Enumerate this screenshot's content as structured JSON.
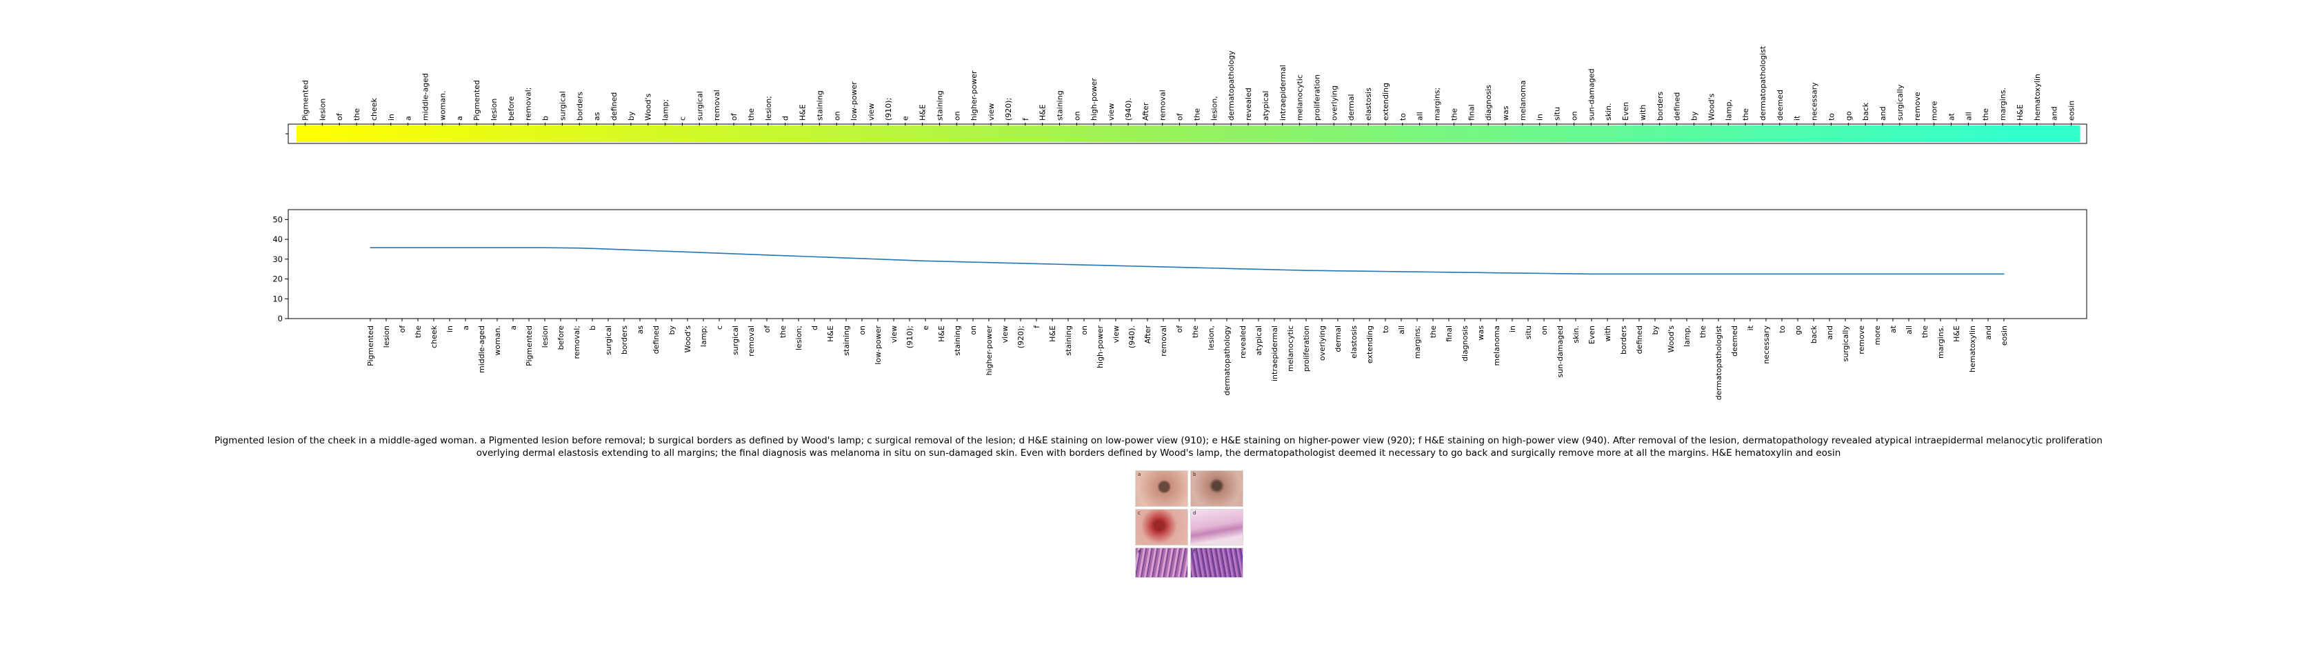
{
  "tokens": [
    "Pigmented",
    "lesion",
    "of",
    "the",
    "cheek",
    "in",
    "a",
    "middle-aged",
    "woman.",
    "a",
    "Pigmented",
    "lesion",
    "before",
    "removal;",
    "b",
    "surgical",
    "borders",
    "as",
    "defined",
    "by",
    "Wood's",
    "lamp;",
    "c",
    "surgical",
    "removal",
    "of",
    "the",
    "lesion;",
    "d",
    "H&E",
    "staining",
    "on",
    "low-power",
    "view",
    "(910);",
    "e",
    "H&E",
    "staining",
    "on",
    "higher-power",
    "view",
    "(920);",
    "f",
    "H&E",
    "staining",
    "on",
    "high-power",
    "view",
    "(940).",
    "After",
    "removal",
    "of",
    "the",
    "lesion,",
    "dermatopathology",
    "revealed",
    "atypical",
    "intraepidermal",
    "melanocytic",
    "proliferation",
    "overlying",
    "dermal",
    "elastosis",
    "extending",
    "to",
    "all",
    "margins;",
    "the",
    "final",
    "diagnosis",
    "was",
    "melanoma",
    "in",
    "situ",
    "on",
    "sun-damaged",
    "skin.",
    "Even",
    "with",
    "borders",
    "defined",
    "by",
    "Wood's",
    "lamp,",
    "the",
    "dermatopathologist",
    "deemed",
    "it",
    "necessary",
    "to",
    "go",
    "back",
    "and",
    "surgically",
    "remove",
    "more",
    "at",
    "all",
    "the",
    "margins.",
    "H&E",
    "hematoxylin",
    "and",
    "eosin"
  ],
  "chart_data": [
    {
      "type": "heatmap",
      "categories_ref": "tokens",
      "color_start": "#ffff00",
      "color_mid": "#99f25a",
      "color_end": "#33ffcc",
      "values": [
        0.0,
        0.01,
        0.02,
        0.03,
        0.04,
        0.05,
        0.06,
        0.07,
        0.08,
        0.09,
        0.1,
        0.11,
        0.12,
        0.13,
        0.14,
        0.15,
        0.16,
        0.17,
        0.18,
        0.19,
        0.2,
        0.21,
        0.22,
        0.23,
        0.24,
        0.25,
        0.26,
        0.27,
        0.28,
        0.29,
        0.3,
        0.31,
        0.32,
        0.33,
        0.34,
        0.35,
        0.36,
        0.37,
        0.38,
        0.39,
        0.4,
        0.41,
        0.42,
        0.43,
        0.44,
        0.45,
        0.46,
        0.47,
        0.48,
        0.49,
        0.5,
        0.51,
        0.52,
        0.53,
        0.54,
        0.55,
        0.56,
        0.57,
        0.58,
        0.59,
        0.6,
        0.61,
        0.62,
        0.63,
        0.64,
        0.65,
        0.66,
        0.67,
        0.68,
        0.69,
        0.7,
        0.71,
        0.72,
        0.73,
        0.74,
        0.75,
        0.76,
        0.77,
        0.78,
        0.79,
        0.8,
        0.81,
        0.82,
        0.83,
        0.84,
        0.85,
        0.86,
        0.87,
        0.88,
        0.89,
        0.9,
        0.91,
        0.92,
        0.93,
        0.94,
        0.95,
        0.96,
        0.97,
        0.98,
        0.99,
        1.0,
        1.0,
        1.0,
        1.0
      ]
    },
    {
      "type": "line",
      "categories_ref": "tokens",
      "ylim": [
        0,
        55
      ],
      "yticks": [
        0,
        10,
        20,
        30,
        40,
        50
      ],
      "line_color": "#1f77b4",
      "values": [
        35.8,
        35.8,
        35.8,
        35.8,
        35.8,
        35.8,
        35.8,
        35.8,
        35.8,
        35.8,
        35.8,
        35.8,
        35.7,
        35.6,
        35.4,
        35.1,
        34.8,
        34.5,
        34.2,
        33.9,
        33.6,
        33.3,
        33.0,
        32.7,
        32.4,
        32.1,
        31.8,
        31.5,
        31.2,
        30.9,
        30.6,
        30.3,
        30.0,
        29.7,
        29.4,
        29.1,
        28.9,
        28.7,
        28.5,
        28.3,
        28.1,
        27.9,
        27.7,
        27.5,
        27.3,
        27.1,
        26.9,
        26.7,
        26.5,
        26.3,
        26.1,
        25.9,
        25.7,
        25.5,
        25.3,
        25.1,
        24.9,
        24.7,
        24.5,
        24.3,
        24.2,
        24.1,
        24.0,
        23.9,
        23.8,
        23.7,
        23.6,
        23.5,
        23.4,
        23.3,
        23.2,
        23.1,
        23.0,
        22.9,
        22.8,
        22.7,
        22.6,
        22.5,
        22.5,
        22.5,
        22.5,
        22.5,
        22.5,
        22.5,
        22.5,
        22.5,
        22.5,
        22.5,
        22.5,
        22.5,
        22.5,
        22.5,
        22.5,
        22.5,
        22.5,
        22.5,
        22.5,
        22.5,
        22.5,
        22.5,
        22.5,
        22.5,
        22.5,
        22.5
      ]
    }
  ],
  "caption": "Pigmented lesion of the cheek in a middle-aged woman. a Pigmented lesion before removal; b surgical borders as defined by Wood's lamp; c surgical removal of the lesion; d H&E staining on low-power view (910); e H&E staining on higher-power view (920); f H&E staining on high-power view (940). After removal of the lesion, dermatopathology revealed atypical intraepidermal melanocytic proliferation overlying dermal elastosis extending to all margins; the final diagnosis was melanoma in situ on sun-damaged skin. Even with borders defined by Wood's lamp, the dermatopathologist deemed it necessary to go back and surgically remove more at all the margins. H&E hematoxylin and eosin",
  "panels": [
    {
      "label": "a",
      "icon": "skin-photo"
    },
    {
      "label": "b",
      "icon": "skin-photo"
    },
    {
      "label": "c",
      "icon": "skin-photo"
    },
    {
      "label": "d",
      "icon": "histology-image"
    },
    {
      "label": "e",
      "icon": "histology-image"
    },
    {
      "label": "f",
      "icon": "histology-image"
    }
  ]
}
